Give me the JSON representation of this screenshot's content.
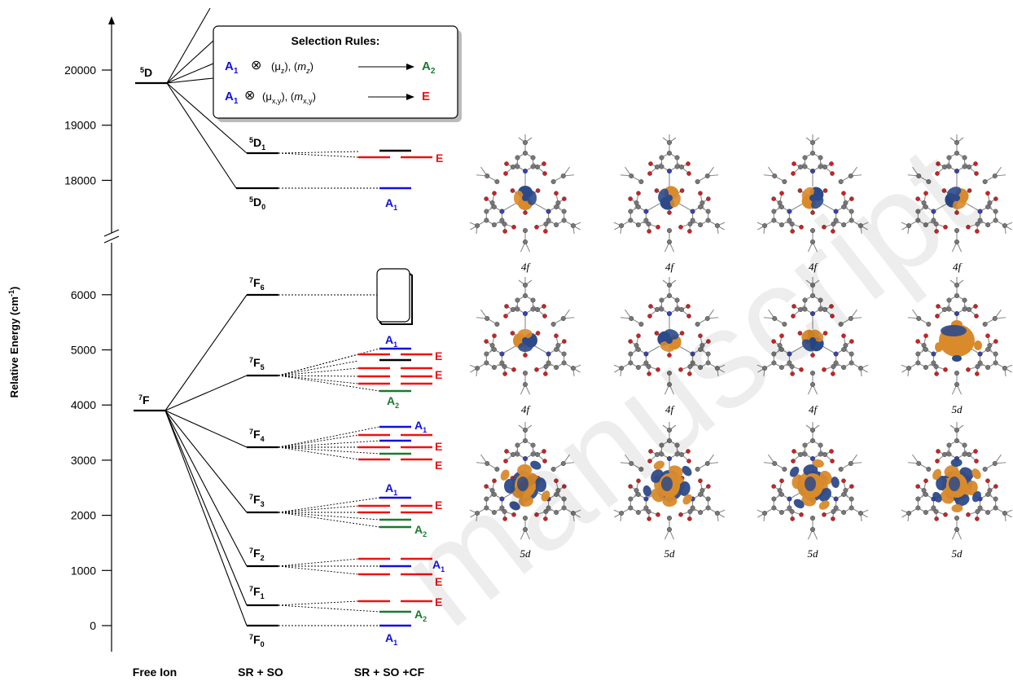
{
  "diagram": {
    "y_axis_label": "Relative Energy (cm⁻¹)",
    "y_axis_label_main": "Relative Energy (cm",
    "y_axis_label_sup": "-1",
    "y_axis_label_close": ")",
    "column_labels": [
      "Free Ion",
      "SR + SO",
      "SR + SO +CF"
    ],
    "upper_ticks": [
      {
        "value": 20000,
        "label": "20000"
      },
      {
        "value": 19000,
        "label": "19000"
      },
      {
        "value": 18000,
        "label": "18000"
      }
    ],
    "lower_ticks": [
      {
        "value": 6000,
        "label": "6000"
      },
      {
        "value": 5000,
        "label": "5000"
      },
      {
        "value": 4000,
        "label": "4000"
      },
      {
        "value": 3000,
        "label": "3000"
      },
      {
        "value": 2000,
        "label": "2000"
      },
      {
        "value": 1000,
        "label": "1000"
      },
      {
        "value": 0,
        "label": "0"
      }
    ],
    "free_ion_levels": [
      {
        "sup": "5",
        "term": "D",
        "energy": 19750
      },
      {
        "sup": "7",
        "term": "F",
        "energy": 3900
      }
    ],
    "sr_so_levels": [
      {
        "sup": "5",
        "term": "D",
        "sub": "1",
        "energy": 18500
      },
      {
        "sup": "5",
        "term": "D",
        "sub": "0",
        "energy": 17870
      },
      {
        "sup": "7",
        "term": "F",
        "sub": "6",
        "energy": 6000
      },
      {
        "sup": "7",
        "term": "F",
        "sub": "5",
        "energy": 4550
      },
      {
        "sup": "7",
        "term": "F",
        "sub": "4",
        "energy": 3230
      },
      {
        "sup": "7",
        "term": "F",
        "sub": "3",
        "energy": 2060
      },
      {
        "sup": "7",
        "term": "F",
        "sub": "2",
        "energy": 1070
      },
      {
        "sup": "7",
        "term": "F",
        "sub": "1",
        "energy": 380
      },
      {
        "sup": "7",
        "term": "F",
        "sub": "0",
        "energy": 0
      }
    ],
    "selection_rules": {
      "title": "Selection Rules:",
      "rules": [
        {
          "from": "A",
          "from_sub": "1",
          "op": "⊗",
          "operators": "(μ",
          "op_sub1": "z",
          "mid": "), (",
          "m": "m",
          "op_sub2": "z",
          "end": ")",
          "to": "A",
          "to_sub": "2"
        },
        {
          "from": "A",
          "from_sub": "1",
          "op": "⊗",
          "operators": "(μ",
          "op_sub1": "x,y",
          "mid": "), (",
          "m": "m",
          "op_sub2": "x,y",
          "end": ")",
          "to": "E",
          "to_sub": ""
        }
      ]
    },
    "sym_labels": {
      "A1": "A",
      "A1_sub": "1",
      "A2": "A",
      "A2_sub": "2",
      "E": "E"
    },
    "colors": {
      "A1": "#1010e0",
      "A2": "#1a7a2e",
      "E": "#ee1111",
      "black": "#000000"
    }
  },
  "orbitals": {
    "labels": [
      "4f",
      "4f",
      "4f",
      "4f",
      "4f",
      "4f",
      "4f",
      "5d",
      "5d",
      "5d",
      "5d",
      "5d"
    ],
    "colors": {
      "orange": "#d98a2b",
      "blue": "#2c4a8a",
      "carbon": "#777777",
      "oxygen": "#cc2222",
      "nitrogen": "#3344bb"
    }
  },
  "watermark": {
    "text": "manuscript"
  }
}
